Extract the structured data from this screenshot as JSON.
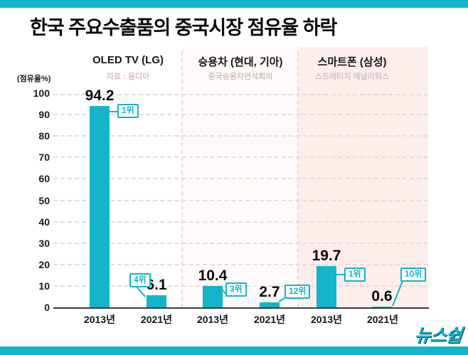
{
  "title": "한국 주요수출품의 중국시장 점유율 하락",
  "logo_text": "뉴스쉽",
  "y_axis_label": "(점유율%)",
  "y_ticks": [
    "100",
    "90",
    "80",
    "70",
    "60",
    "50",
    "40",
    "30",
    "20",
    "10",
    "0"
  ],
  "colors": {
    "accent": "#14b4ca",
    "bar": "#14b4ca",
    "section3_background": "#fdeeec",
    "axis": "#3c3c3c"
  },
  "chart_data": {
    "type": "bar",
    "title": "한국 주요수출품의 중국시장 점유율 하락",
    "ylabel": "(점유율%)",
    "ylim": [
      0,
      100
    ],
    "grid": "horizontal dashed, every 10",
    "legend": "none",
    "categories": [
      "2013년",
      "2021년"
    ],
    "groups": [
      {
        "name": "OLED TV (LG)",
        "source": "자료 : 옴디아",
        "series": [
          {
            "x": "2013년",
            "value": 94.2,
            "rank": "1위"
          },
          {
            "x": "2021년",
            "value": 6.1,
            "rank": "4위"
          }
        ]
      },
      {
        "name": "승용차 (현대, 기아)",
        "source": "중국승용차연석회의",
        "series": [
          {
            "x": "2013년",
            "value": 10.4,
            "rank": "3위"
          },
          {
            "x": "2021년",
            "value": 2.7,
            "rank": "12위"
          }
        ]
      },
      {
        "name": "스마트폰 (삼성)",
        "source": "스트래티지 애널리틱스",
        "series": [
          {
            "x": "2013년",
            "value": 19.7,
            "rank": "1위"
          },
          {
            "x": "2021년",
            "value": 0.6,
            "rank": "10위"
          }
        ]
      }
    ]
  }
}
